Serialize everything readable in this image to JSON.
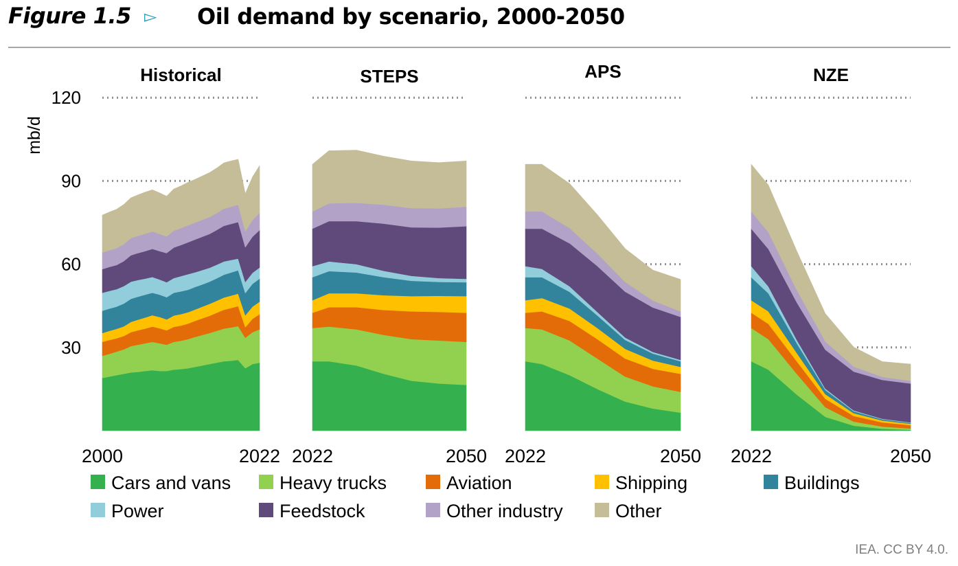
{
  "header": {
    "figure_label": "Figure 1.5",
    "title": "Oil demand by scenario, 2000-2050"
  },
  "credit": "IEA. CC BY 4.0.",
  "chart_data": {
    "type": "area",
    "stacked": true,
    "ylabel": "mb/d",
    "ylim": [
      0,
      120
    ],
    "yticks": [
      30,
      60,
      90,
      120
    ],
    "grid": "dotted horizontal",
    "legend_position": "bottom",
    "series_names": [
      "Cars and vans",
      "Heavy trucks",
      "Aviation",
      "Shipping",
      "Buildings",
      "Power",
      "Feedstock",
      "Other industry",
      "Other"
    ],
    "colors": [
      "#35b04f",
      "#92d050",
      "#e36c09",
      "#ffc000",
      "#31849b",
      "#92cddc",
      "#604a7b",
      "#b3a2c7",
      "#c4bd97"
    ],
    "panels": [
      {
        "name": "Historical",
        "x_ticks": [
          "2000",
          "2022"
        ],
        "x": [
          2000,
          2001,
          2002,
          2003,
          2004,
          2005,
          2006,
          2007,
          2008,
          2009,
          2010,
          2011,
          2012,
          2013,
          2014,
          2015,
          2016,
          2017,
          2018,
          2019,
          2020,
          2021,
          2022
        ],
        "series": [
          {
            "name": "Cars and vans",
            "values": [
              19,
              19.5,
              20,
              20.5,
              21,
              21.2,
              21.5,
              21.8,
              21.5,
              21.5,
              22,
              22.2,
              22.5,
              23,
              23.5,
              24,
              24.5,
              25,
              25.2,
              25.5,
              22.5,
              24,
              24.5
            ]
          },
          {
            "name": "Heavy trucks",
            "values": [
              8,
              8.2,
              8.5,
              8.8,
              9.5,
              9.8,
              10,
              10.2,
              10,
              9.5,
              10,
              10.2,
              10.5,
              10.8,
              11,
              11.2,
              11.5,
              11.8,
              12,
              12.2,
              11,
              11.5,
              12
            ]
          },
          {
            "name": "Aviation",
            "values": [
              5,
              5,
              4.8,
              4.8,
              5,
              5.2,
              5.3,
              5.5,
              5.4,
              5.2,
              5.4,
              5.5,
              5.6,
              5.8,
              6,
              6.2,
              6.5,
              6.8,
              7,
              7.2,
              3.8,
              4.8,
              5.5
            ]
          },
          {
            "name": "Shipping",
            "values": [
              3.2,
              3.3,
              3.4,
              3.5,
              3.7,
              3.8,
              4,
              4.1,
              4.1,
              3.9,
              4.1,
              4.1,
              4.1,
              4.1,
              4.2,
              4.3,
              4.3,
              4.4,
              4.5,
              4.5,
              4.3,
              4.4,
              4.5
            ]
          },
          {
            "name": "Buildings",
            "values": [
              8,
              8,
              8,
              8.2,
              8.3,
              8.3,
              8.2,
              8.1,
              8,
              8,
              8.2,
              8.2,
              8.1,
              8.1,
              8,
              8,
              8.1,
              8.2,
              8.3,
              8.4,
              8,
              8.2,
              8.3
            ]
          },
          {
            "name": "Power",
            "values": [
              6.5,
              6.4,
              6.3,
              6.3,
              6.2,
              6,
              5.8,
              5.7,
              5.5,
              5.4,
              5.3,
              5.5,
              5.6,
              5.3,
              5.2,
              5,
              4.9,
              4.8,
              4.5,
              4.2,
              4,
              4,
              4
            ]
          },
          {
            "name": "Feedstock",
            "values": [
              8.5,
              8.6,
              8.7,
              9,
              9.5,
              9.7,
              9.9,
              10.1,
              10.2,
              10.5,
              11,
              11.2,
              11.5,
              11.8,
              12,
              12.2,
              12.5,
              12.8,
              13,
              13.2,
              12.5,
              13,
              13.5
            ]
          },
          {
            "name": "Other industry",
            "values": [
              6,
              6,
              6.1,
              6.1,
              6.2,
              6.2,
              6.3,
              6.3,
              6.2,
              6,
              6.1,
              6.1,
              6.1,
              6.1,
              6.1,
              6.1,
              6.1,
              6.2,
              6.2,
              6.2,
              5.8,
              6,
              6.2
            ]
          },
          {
            "name": "Other",
            "values": [
              13.5,
              13.8,
              14,
              14.3,
              14.5,
              14.8,
              15,
              15,
              14.8,
              14.5,
              15,
              15.2,
              15.5,
              15.6,
              15.8,
              16,
              16.2,
              16.5,
              16.5,
              16.4,
              13.5,
              15.5,
              17
            ]
          }
        ]
      },
      {
        "name": "STEPS",
        "x_ticks": [
          "2022",
          "2050"
        ],
        "x": [
          2022,
          2025,
          2030,
          2035,
          2040,
          2045,
          2050
        ],
        "series": [
          {
            "name": "Cars and vans",
            "values": [
              25,
              25,
              23.5,
              20.5,
              18,
              17,
              16.5
            ]
          },
          {
            "name": "Heavy trucks",
            "values": [
              12,
              12.5,
              13,
              14,
              15,
              15.5,
              15.5
            ]
          },
          {
            "name": "Aviation",
            "values": [
              5.5,
              7,
              8,
              9,
              10,
              10.3,
              10.5
            ]
          },
          {
            "name": "Shipping",
            "values": [
              4.5,
              5,
              5,
              5.3,
              5.5,
              5.8,
              6
            ]
          },
          {
            "name": "Buildings",
            "values": [
              8.3,
              8,
              7.5,
              6.5,
              5.5,
              5,
              5
            ]
          },
          {
            "name": "Power",
            "values": [
              4,
              3.5,
              3,
              2.3,
              1.8,
              1.4,
              1.2
            ]
          },
          {
            "name": "Feedstock",
            "values": [
              13.5,
              14.5,
              15.5,
              17,
              17.5,
              18.2,
              19
            ]
          },
          {
            "name": "Other industry",
            "values": [
              6.2,
              6.4,
              6.6,
              6.8,
              6.9,
              6.9,
              7
            ]
          },
          {
            "name": "Other",
            "values": [
              17,
              19,
              19,
              17.5,
              17,
              16.5,
              16.5
            ]
          }
        ]
      },
      {
        "name": "APS",
        "x_ticks": [
          "2022",
          "2050"
        ],
        "x": [
          2022,
          2025,
          2030,
          2035,
          2040,
          2045,
          2050
        ],
        "series": [
          {
            "name": "Cars and vans",
            "values": [
              25,
              24,
              20,
              15,
              10.5,
              8,
              6.5
            ]
          },
          {
            "name": "Heavy trucks",
            "values": [
              12,
              12.5,
              12.5,
              11,
              9,
              8,
              7.5
            ]
          },
          {
            "name": "Aviation",
            "values": [
              5.5,
              6.5,
              7,
              7,
              6.5,
              6.3,
              6.5
            ]
          },
          {
            "name": "Shipping",
            "values": [
              4.5,
              4.8,
              4.5,
              4,
              3.5,
              3,
              2.5
            ]
          },
          {
            "name": "Buildings",
            "values": [
              8.3,
              7.5,
              6,
              4.5,
              3.2,
              2.5,
              2
            ]
          },
          {
            "name": "Power",
            "values": [
              4,
              3,
              2,
              1.3,
              0.9,
              0.6,
              0.5
            ]
          },
          {
            "name": "Feedstock",
            "values": [
              13.5,
              14.5,
              15.5,
              16.5,
              16.5,
              16,
              15.5
            ]
          },
          {
            "name": "Other industry",
            "values": [
              6.2,
              6.2,
              5.5,
              4.5,
              3.5,
              2.5,
              2
            ]
          },
          {
            "name": "Other",
            "values": [
              17,
              17,
              16,
              14,
              12,
              11,
              11.5
            ]
          }
        ]
      },
      {
        "name": "NZE",
        "x_ticks": [
          "2022",
          "2050"
        ],
        "x": [
          2022,
          2025,
          2030,
          2035,
          2040,
          2045,
          2050
        ],
        "series": [
          {
            "name": "Cars and vans",
            "values": [
              25,
              22,
              13,
              5,
              1.8,
              0.7,
              0.3
            ]
          },
          {
            "name": "Heavy trucks",
            "values": [
              12,
              11,
              7.5,
              3.5,
              1.5,
              0.8,
              0.5
            ]
          },
          {
            "name": "Aviation",
            "values": [
              5.5,
              5.5,
              4.5,
              3,
              2,
              1.5,
              1.2
            ]
          },
          {
            "name": "Shipping",
            "values": [
              4.5,
              4.5,
              3,
              1.7,
              1,
              0.7,
              0.5
            ]
          },
          {
            "name": "Buildings",
            "values": [
              8.3,
              6.5,
              3.5,
              1.5,
              0.7,
              0.4,
              0.3
            ]
          },
          {
            "name": "Power",
            "values": [
              4,
              2.5,
              1.2,
              0.5,
              0.3,
              0.2,
              0.2
            ]
          },
          {
            "name": "Feedstock",
            "values": [
              13.5,
              13.5,
              13.5,
              14,
              14,
              14,
              14
            ]
          },
          {
            "name": "Other industry",
            "values": [
              6.2,
              6,
              4.5,
              3,
              1.8,
              1.1,
              1
            ]
          },
          {
            "name": "Other",
            "values": [
              17,
              17,
              14,
              10,
              7,
              5.5,
              6
            ]
          }
        ]
      }
    ]
  }
}
